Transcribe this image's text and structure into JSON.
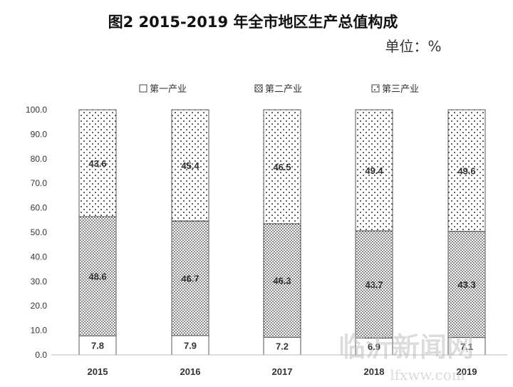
{
  "chart_data": {
    "type": "bar",
    "stacked": true,
    "title": "图2  2015-2019 年全市地区生产总值构成",
    "unit_label": "单位：%",
    "categories": [
      "2015",
      "2016",
      "2017",
      "2018",
      "2019"
    ],
    "series": [
      {
        "name": "第一产业",
        "values": [
          7.8,
          7.9,
          7.2,
          6.9,
          7.1
        ],
        "labels": [
          "7.8",
          "7.9",
          "7.2",
          "6.9",
          "7.1"
        ],
        "pattern": "blank"
      },
      {
        "name": "第二产业",
        "values": [
          48.6,
          46.7,
          46.3,
          43.7,
          43.3
        ],
        "labels": [
          "48.6",
          "46.7",
          "46.3",
          "43.7",
          "43.3"
        ],
        "pattern": "dense-dots"
      },
      {
        "name": "第三产业",
        "values": [
          43.6,
          45.4,
          46.5,
          49.4,
          49.6
        ],
        "labels": [
          "43.6",
          "45.4",
          "46.5",
          "49.4",
          "49.6"
        ],
        "pattern": "sparse-dots"
      }
    ],
    "ylim": [
      0,
      100
    ],
    "yticks": [
      "0.0",
      "10.0",
      "20.0",
      "30.0",
      "40.0",
      "50.0",
      "60.0",
      "70.0",
      "80.0",
      "90.0",
      "100.0"
    ],
    "grid": false,
    "legend_position": "top"
  },
  "watermark": {
    "name": "临沂新闻网",
    "url": "lfxww.com"
  }
}
